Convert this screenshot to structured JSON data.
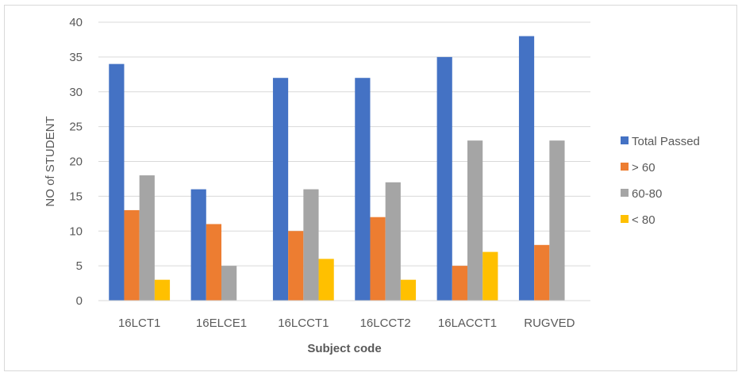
{
  "chart_data": {
    "type": "bar",
    "title": "",
    "xlabel": "Subject code",
    "ylabel": "NO of STUDENT",
    "ylim": [
      0,
      40
    ],
    "yticks": [
      0,
      5,
      10,
      15,
      20,
      25,
      30,
      35,
      40
    ],
    "categories": [
      "16LCT1",
      "16ELCE1",
      "16LCCT1",
      "16LCCT2",
      "16LACCT1",
      "RUGVED"
    ],
    "series": [
      {
        "name": "Total Passed",
        "color": "#4472c4",
        "values": [
          34,
          16,
          32,
          32,
          35,
          38
        ]
      },
      {
        "name": "> 60",
        "color": "#ed7d31",
        "values": [
          13,
          11,
          10,
          12,
          5,
          8
        ]
      },
      {
        "name": "60-80",
        "color": "#a5a5a5",
        "values": [
          18,
          5,
          16,
          17,
          23,
          23
        ]
      },
      {
        "name": "< 80",
        "color": "#ffc000",
        "values": [
          3,
          0,
          6,
          3,
          7,
          0
        ]
      }
    ],
    "grid": true,
    "legend_position": "right"
  }
}
